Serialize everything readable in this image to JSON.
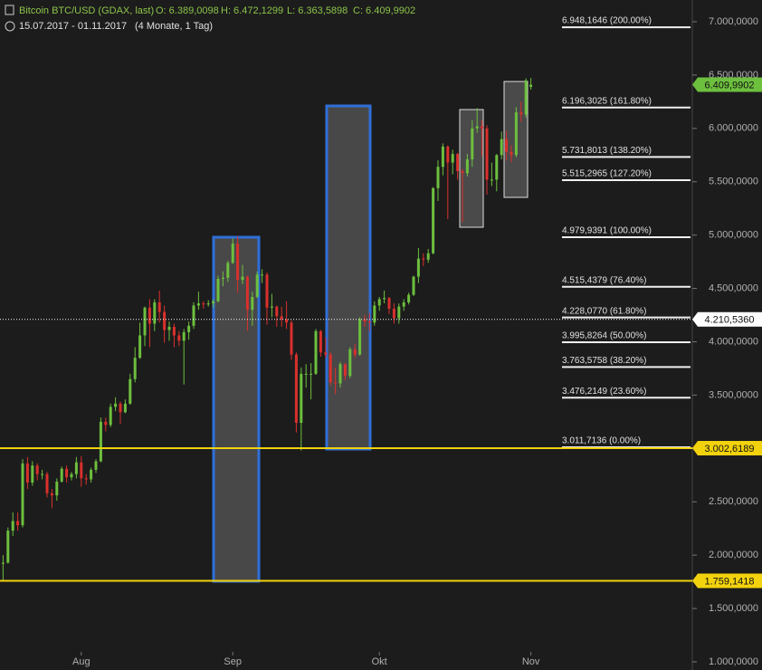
{
  "header": {
    "title": "Bitcoin BTC/USD (GDAX, last)",
    "ohlc": [
      {
        "value": 6389.0098,
        "label": "O: 6.389,0098"
      },
      {
        "value": 6472.1299,
        "label": "H: 6.472,1299"
      },
      {
        "value": 6363.5898,
        "label": "L: 6.363,5898"
      },
      {
        "value": 6409.9902,
        "label": "C: 6.409,9902"
      }
    ],
    "range": "15.07.2017 - 01.11.2017",
    "period": "(4 Monate, 1 Tag)"
  },
  "chart_data": {
    "type": "candlestick",
    "up_color": "#6dbf3e",
    "down_color": "#d9302c",
    "categories": [
      null,
      null,
      null,
      null,
      null,
      null,
      null,
      null,
      null,
      null,
      null,
      null,
      null,
      null,
      null,
      null,
      null,
      "Aug",
      null,
      null,
      null,
      null,
      null,
      null,
      null,
      null,
      null,
      null,
      null,
      null,
      null,
      null,
      null,
      null,
      null,
      null,
      null,
      null,
      null,
      null,
      null,
      null,
      null,
      null,
      null,
      null,
      null,
      null,
      "Sep",
      null,
      null,
      null,
      null,
      null,
      null,
      null,
      null,
      null,
      null,
      null,
      null,
      null,
      null,
      null,
      null,
      null,
      null,
      null,
      null,
      null,
      null,
      null,
      null,
      null,
      null,
      null,
      null,
      null,
      "Okt",
      null,
      null,
      null,
      null,
      null,
      null,
      null,
      null,
      null,
      null,
      null,
      null,
      null,
      null,
      null,
      null,
      null,
      null,
      null,
      null,
      null,
      null,
      null,
      null,
      null,
      null,
      null,
      null,
      null,
      null,
      "Nov"
    ],
    "open": [
      1950,
      1920,
      1930,
      2230,
      2320,
      2280,
      2860,
      2680,
      2840,
      2760,
      2760,
      2580,
      2560,
      2690,
      2810,
      2730,
      2760,
      2870,
      2720,
      2710,
      2800,
      2880,
      3250,
      3220,
      3390,
      3420,
      3340,
      3420,
      3650,
      3850,
      4060,
      4320,
      4170,
      4370,
      4280,
      4110,
      4140,
      4060,
      4010,
      4090,
      4150,
      4340,
      4360,
      4350,
      4360,
      4380,
      4590,
      4600,
      4740,
      4920,
      4580,
      4610,
      4300,
      4420,
      4630,
      4630,
      4320,
      4330,
      4240,
      4210,
      4180,
      3880,
      3240,
      3700,
      3700,
      3700,
      4100,
      3900,
      3880,
      3620,
      3610,
      3790,
      3680,
      3930,
      3880,
      4210,
      4190,
      4180,
      4340,
      4400,
      4410,
      4310,
      4220,
      4330,
      4370,
      4440,
      4610,
      4780,
      4770,
      4830,
      5440,
      5640,
      5830,
      5680,
      5760,
      5600,
      5580,
      5710,
      6000,
      6020,
      6000,
      5520,
      5520,
      5750,
      5900,
      5780,
      5750,
      6150,
      6130,
      6389.0098
    ],
    "high": [
      2010,
      2000,
      2260,
      2400,
      2400,
      2900,
      2920,
      2880,
      2860,
      2800,
      2780,
      2620,
      2720,
      2830,
      2840,
      2780,
      2920,
      2930,
      2760,
      2820,
      2900,
      3290,
      3290,
      3420,
      3480,
      3440,
      3460,
      3700,
      3950,
      4180,
      4330,
      4400,
      4400,
      4480,
      4340,
      4190,
      4170,
      4100,
      4120,
      4190,
      4370,
      4470,
      4380,
      4390,
      4400,
      4620,
      4660,
      4760,
      4970,
      4990,
      4720,
      4620,
      4470,
      4660,
      4680,
      4650,
      4450,
      4340,
      4330,
      4380,
      4200,
      3900,
      3760,
      3790,
      3800,
      4120,
      4110,
      4040,
      3900,
      3760,
      3810,
      3800,
      3950,
      3980,
      4230,
      4250,
      4270,
      4380,
      4420,
      4480,
      4420,
      4360,
      4360,
      4400,
      4460,
      4620,
      4880,
      4830,
      4870,
      5450,
      5700,
      5860,
      5840,
      5800,
      5770,
      5620,
      5760,
      6080,
      6190,
      6080,
      6030,
      5680,
      5760,
      5970,
      5980,
      5840,
      6200,
      6250,
      6470,
      6472.1299
    ],
    "low": [
      1830,
      1759,
      1920,
      2180,
      2230,
      2260,
      2620,
      2650,
      2700,
      2710,
      2540,
      2440,
      2510,
      2680,
      2680,
      2700,
      2720,
      2640,
      2660,
      2680,
      2770,
      2870,
      3160,
      3200,
      3350,
      3230,
      3330,
      3410,
      3620,
      3840,
      3960,
      3950,
      4100,
      4180,
      3990,
      4010,
      3950,
      3960,
      3600,
      4020,
      4120,
      4300,
      4310,
      4330,
      4320,
      4370,
      4520,
      4560,
      4730,
      4460,
      4540,
      4100,
      4150,
      4410,
      4550,
      4160,
      4230,
      4140,
      4140,
      4120,
      3830,
      3150,
      2980,
      3570,
      3460,
      3690,
      3860,
      3850,
      3590,
      3510,
      3570,
      3640,
      3660,
      3850,
      3870,
      4140,
      4100,
      4150,
      4290,
      4360,
      4260,
      4170,
      4170,
      4290,
      4350,
      4430,
      4550,
      4710,
      4740,
      4820,
      5320,
      5560,
      5150,
      5570,
      5520,
      5120,
      5550,
      5640,
      5960,
      5740,
      5380,
      5460,
      5410,
      5710,
      5700,
      5680,
      5730,
      6060,
      6100,
      6363.5898
    ],
    "close": [
      1920,
      1930,
      2230,
      2320,
      2280,
      2860,
      2680,
      2840,
      2760,
      2760,
      2580,
      2560,
      2690,
      2810,
      2730,
      2760,
      2870,
      2720,
      2710,
      2800,
      2880,
      3250,
      3220,
      3390,
      3420,
      3340,
      3420,
      3650,
      3850,
      4060,
      4320,
      4170,
      4370,
      4280,
      4110,
      4140,
      4060,
      4010,
      4090,
      4150,
      4340,
      4360,
      4350,
      4360,
      4380,
      4590,
      4600,
      4740,
      4920,
      4580,
      4610,
      4300,
      4420,
      4630,
      4630,
      4320,
      4330,
      4240,
      4210,
      4180,
      3880,
      3240,
      3700,
      3700,
      3700,
      4100,
      3900,
      3880,
      3620,
      3610,
      3790,
      3680,
      3930,
      3880,
      4210,
      4190,
      4180,
      4340,
      4400,
      4410,
      4310,
      4220,
      4330,
      4370,
      4440,
      4610,
      4780,
      4770,
      4830,
      5440,
      5640,
      5830,
      5680,
      5760,
      5600,
      5580,
      5710,
      6000,
      6020,
      6000,
      5520,
      5520,
      5750,
      5900,
      5780,
      5750,
      6150,
      6130,
      6450,
      6409.9902
    ],
    "ylim": [
      1000,
      7000
    ],
    "yticks": [
      {
        "value": 1000,
        "label": "1.000,0000"
      },
      {
        "value": 1500,
        "label": "1.500,0000"
      },
      {
        "value": 2000,
        "label": "2.000,0000"
      },
      {
        "value": 2500,
        "label": "2.500,0000"
      },
      {
        "value": 3000,
        "label": "3.000,0000"
      },
      {
        "value": 3500,
        "label": "3.500,0000"
      },
      {
        "value": 4000,
        "label": "4.000,0000"
      },
      {
        "value": 4500,
        "label": "4.500,0000"
      },
      {
        "value": 5000,
        "label": "5.000,0000"
      },
      {
        "value": 5500,
        "label": "5.500,0000"
      },
      {
        "value": 6000,
        "label": "6.000,0000"
      },
      {
        "value": 6500,
        "label": "6.500,0000"
      },
      {
        "value": 7000,
        "label": "7.000,0000"
      }
    ],
    "fib_levels": [
      {
        "value": 6948.1646,
        "label": "6.948,1646 (200.00%)"
      },
      {
        "value": 6196.3025,
        "label": "6.196,3025 (161.80%)"
      },
      {
        "value": 5731.8013,
        "label": "5.731,8013 (138.20%)"
      },
      {
        "value": 5515.2965,
        "label": "5.515,2965 (127.20%)"
      },
      {
        "value": 4979.9391,
        "label": "4.979,9391 (100.00%)"
      },
      {
        "value": 4515.4379,
        "label": "4.515,4379 (76.40%)"
      },
      {
        "value": 4228.077,
        "label": "4.228,0770 (61.80%)"
      },
      {
        "value": 3995.8264,
        "label": "3.995,8264 (50.00%)"
      },
      {
        "value": 3763.5758,
        "label": "3.763,5758 (38.20%)"
      },
      {
        "value": 3476.2149,
        "label": "3.476,2149 (23.60%)"
      },
      {
        "value": 3011.7136,
        "label": "3.011,7136 (0.00%)"
      }
    ],
    "levels": [
      {
        "value": 6409.9902,
        "label": "6.409,9902",
        "color": "#6dbf3e",
        "style": "none"
      },
      {
        "value": 4210.536,
        "label": "4.210,5360",
        "color": "#ffffff",
        "style": "dotted"
      },
      {
        "value": 3002.6189,
        "label": "3.002,6189",
        "color": "#f2d20c",
        "style": "solid"
      },
      {
        "value": 1759.1418,
        "label": "1.759,1418",
        "color": "#f2d20c",
        "style": "solid"
      }
    ]
  }
}
